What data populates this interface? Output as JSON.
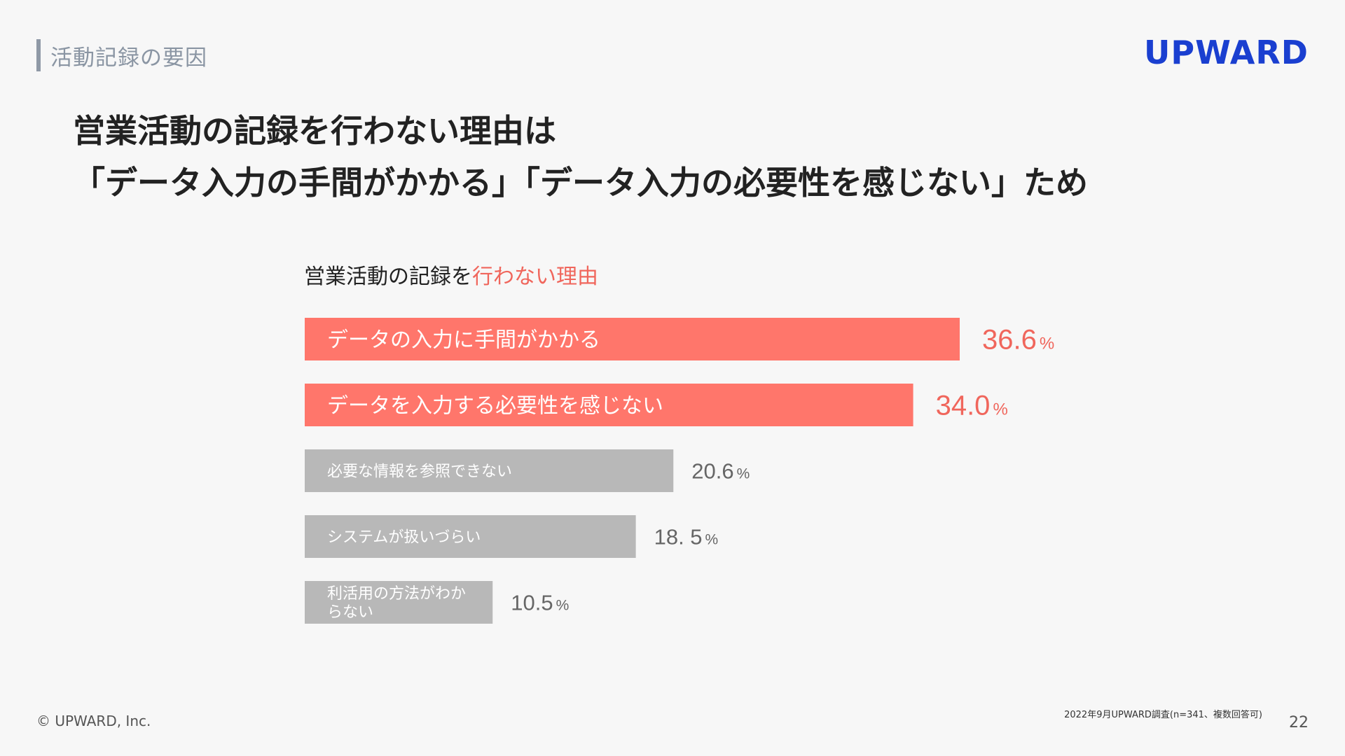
{
  "header": {
    "section_label": "活動記録の要因",
    "logo_text": "UPWARD"
  },
  "headline": {
    "line1": "営業活動の記録を行わない理由は",
    "line2": "「データ入力の手間がかかる」「データ入力の必要性を感じない」ため"
  },
  "chart_title": {
    "plain": "営業活動の記録を",
    "accent": "行わない理由"
  },
  "colors": {
    "highlight": "#ff766b",
    "highlight_text": "#f0665c",
    "normal": "#b8b8b8",
    "normal_text": "#666666",
    "logo": "#1a3fd0"
  },
  "chart_data": {
    "type": "bar",
    "orientation": "horizontal",
    "unit": "%",
    "categories": [
      "データの入力に手間がかかる",
      "データを入力する必要性を感じない",
      "必要な情報を参照できない",
      "システムが扱いづらい",
      "利活用の方法がわからない"
    ],
    "values": [
      36.6,
      34.0,
      20.6,
      18.5,
      10.5
    ],
    "value_labels": [
      "36.6",
      "34.0",
      "20.6",
      "18. 5",
      "10.5"
    ],
    "highlighted": [
      true,
      true,
      false,
      false,
      false
    ]
  },
  "footer": {
    "copyright": "© UPWARD, Inc.",
    "source_note": "2022年9月UPWARD調査(n=341、複数回答可)",
    "page_number": "22"
  }
}
